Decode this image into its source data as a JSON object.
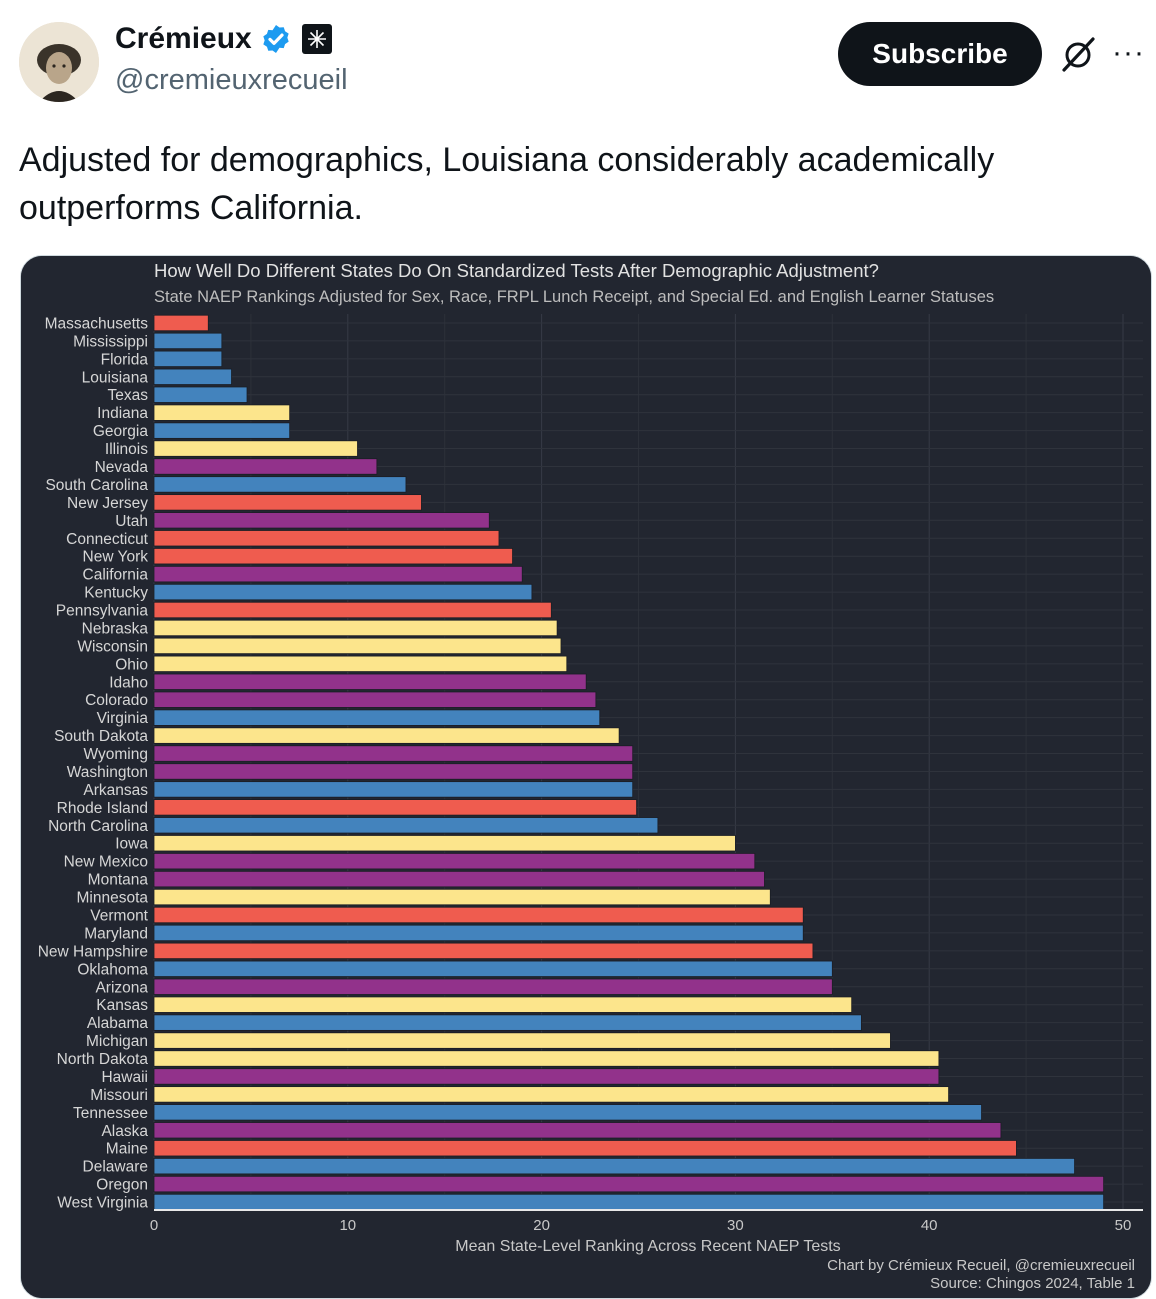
{
  "author": {
    "name": "Crémieux",
    "handle": "@cremieuxrecueil",
    "subscribe_label": "Subscribe"
  },
  "icons": {
    "verified": "verified-badge-icon",
    "affiliate": "affiliate-badge-icon",
    "grok": "grok-icon",
    "more": "more-options-icon"
  },
  "tweet": {
    "text": "Adjusted for demographics, Louisiana considerably academically outperforms California."
  },
  "colors": {
    "red": "#ef5c4f",
    "blue": "#4383bd",
    "yellow": "#fce58c",
    "purple": "#92328b",
    "chart_bg": "#222630",
    "text_light": "#d6d6d6"
  },
  "chart_data": {
    "type": "bar",
    "orientation": "horizontal",
    "title": "How Well Do Different States Do On Standardized Tests After Demographic Adjustment?",
    "subtitle": "State NAEP Rankings Adjusted for Sex, Race, FRPL Lunch Receipt, and Special Ed. and English Learner Statuses",
    "xlabel": "Mean State-Level Ranking Across Recent NAEP Tests",
    "ylabel": "",
    "xlim": [
      0,
      50
    ],
    "xticks": [
      0,
      10,
      20,
      30,
      40,
      50
    ],
    "credit": "Chart by Crémieux Recueil, @cremieuxrecueil",
    "source": "Source: Chingos 2024, Table 1",
    "categories": [
      "Massachusetts",
      "Mississippi",
      "Florida",
      "Louisiana",
      "Texas",
      "Indiana",
      "Georgia",
      "Illinois",
      "Nevada",
      "South Carolina",
      "New Jersey",
      "Utah",
      "Connecticut",
      "New York",
      "California",
      "Kentucky",
      "Pennsylvania",
      "Nebraska",
      "Wisconsin",
      "Ohio",
      "Idaho",
      "Colorado",
      "Virginia",
      "South Dakota",
      "Wyoming",
      "Washington",
      "Arkansas",
      "Rhode Island",
      "North Carolina",
      "Iowa",
      "New Mexico",
      "Montana",
      "Minnesota",
      "Vermont",
      "Maryland",
      "New Hampshire",
      "Oklahoma",
      "Arizona",
      "Kansas",
      "Alabama",
      "Michigan",
      "North Dakota",
      "Hawaii",
      "Missouri",
      "Tennessee",
      "Alaska",
      "Maine",
      "Delaware",
      "Oregon",
      "West Virginia"
    ],
    "values": [
      2.8,
      3.5,
      3.5,
      4.0,
      4.8,
      7.0,
      7.0,
      10.5,
      11.5,
      13.0,
      13.8,
      17.3,
      17.8,
      18.5,
      19.0,
      19.5,
      20.5,
      20.8,
      21.0,
      21.3,
      22.3,
      22.8,
      23.0,
      24.0,
      24.7,
      24.7,
      24.7,
      24.9,
      26.0,
      30.0,
      31.0,
      31.5,
      31.8,
      33.5,
      33.5,
      34.0,
      35.0,
      35.0,
      36.0,
      36.5,
      38.0,
      40.5,
      40.5,
      41.0,
      42.7,
      43.7,
      44.5,
      47.5,
      49.0,
      49.0
    ],
    "party": [
      "red",
      "blue",
      "blue",
      "blue",
      "blue",
      "yellow",
      "blue",
      "yellow",
      "purple",
      "blue",
      "red",
      "purple",
      "red",
      "red",
      "purple",
      "blue",
      "red",
      "yellow",
      "yellow",
      "yellow",
      "purple",
      "purple",
      "blue",
      "yellow",
      "purple",
      "purple",
      "blue",
      "red",
      "blue",
      "yellow",
      "purple",
      "purple",
      "yellow",
      "red",
      "blue",
      "red",
      "blue",
      "purple",
      "yellow",
      "blue",
      "yellow",
      "yellow",
      "purple",
      "yellow",
      "blue",
      "purple",
      "red",
      "blue",
      "purple",
      "blue"
    ]
  }
}
